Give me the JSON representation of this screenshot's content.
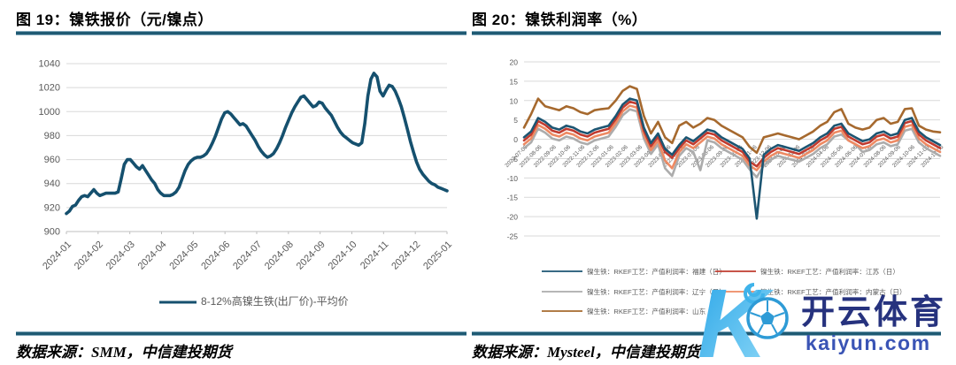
{
  "figures": [
    {
      "title": "图 19：镍铁报价（元/镍点）",
      "source": "数据来源：SMM，中信建投期货"
    },
    {
      "title": "图 20：镍铁利润率（%）",
      "source": "数据来源：Mysteel，中信建投期货"
    }
  ],
  "colors": {
    "rule": "#1F5A73",
    "grid": "#D9D9D9",
    "axis_text": "#595959"
  },
  "watermark": {
    "letter": "K",
    "brand": "开云体育",
    "domain": "kaiyun.com",
    "brand_color": "#26327E",
    "domain_color": "#3A54B5",
    "logo_blue": "#2E9BD6"
  },
  "chart_data": [
    {
      "type": "line",
      "title": "镍铁报价（元/镍点）",
      "ylabel": "",
      "xlabel": "",
      "ylim": [
        900,
        1040
      ],
      "y_ticks": [
        1040,
        1020,
        1000,
        980,
        960,
        940,
        920,
        900
      ],
      "grid": true,
      "legend_position": "bottom",
      "x_labels": [
        "2024-01",
        "2024-02",
        "2024-03",
        "2024-04",
        "2024-05",
        "2024-06",
        "2024-07",
        "2024-08",
        "2024-09",
        "2024-10",
        "2024-11",
        "2024-12",
        "2025-01"
      ],
      "series": [
        {
          "name": "8-12%高镍生铁(出厂价)-平均价",
          "color": "#15506E",
          "values": [
            915,
            917,
            921,
            922,
            926,
            929,
            930,
            929,
            932,
            935,
            932,
            930,
            931,
            932,
            932,
            932,
            932,
            933,
            944,
            956,
            960,
            960,
            957,
            954,
            952,
            955,
            951,
            947,
            943,
            940,
            935,
            932,
            930,
            930,
            930,
            931,
            933,
            937,
            944,
            951,
            956,
            959,
            961,
            962,
            962,
            963,
            965,
            969,
            974,
            980,
            987,
            994,
            999,
            1000,
            998,
            995,
            992,
            989,
            990,
            988,
            984,
            980,
            976,
            971,
            967,
            964,
            962,
            963,
            965,
            969,
            974,
            980,
            987,
            993,
            999,
            1004,
            1008,
            1012,
            1013,
            1010,
            1007,
            1004,
            1005,
            1008,
            1007,
            1003,
            1000,
            997,
            992,
            987,
            983,
            980,
            978,
            976,
            974,
            973,
            972,
            974,
            990,
            1013,
            1027,
            1032,
            1029,
            1017,
            1013,
            1018,
            1022,
            1021,
            1017,
            1011,
            1004,
            995,
            985,
            975,
            966,
            958,
            952,
            948,
            945,
            942,
            940,
            939,
            937,
            936,
            935,
            934
          ]
        }
      ]
    },
    {
      "type": "line",
      "title": "镍铁利润率（%）",
      "ylabel": "",
      "xlabel": "",
      "ylim": [
        -25,
        20
      ],
      "y_ticks": [
        20,
        15,
        10,
        5,
        0,
        -5,
        -10,
        -15,
        -20,
        -25
      ],
      "grid": true,
      "legend_position": "bottom",
      "x_labels": [
        "2022-07-06",
        "2022-08-06",
        "2022-09-06",
        "2022-10-06",
        "2022-11-06",
        "2022-12-06",
        "2023-01-06",
        "2023-02-06",
        "2023-03-06",
        "2023-04-06",
        "2023-05-06",
        "2023-06-06",
        "2023-07-06",
        "2023-08-06",
        "2023-09-06",
        "2023-10-06",
        "2023-11-06",
        "2023-12-06",
        "2024-01-06",
        "2024-02-06",
        "2024-03-06",
        "2024-04-06",
        "2024-05-06",
        "2024-06-06",
        "2024-07-06",
        "2024-08-06",
        "2024-09-06",
        "2024-10-06",
        "2024-11-06",
        "2024-12-06"
      ],
      "series": [
        {
          "name": "镍生铁：RKEF工艺：产值利润率：福建（日）",
          "color": "#1C5572",
          "values": [
            0.5,
            2.0,
            5.5,
            4.5,
            3.0,
            2.5,
            3.5,
            3.0,
            2.0,
            1.5,
            2.5,
            3.0,
            3.5,
            6.0,
            9.0,
            10.5,
            10.0,
            3.0,
            -1.0,
            1.5,
            -2.5,
            -4.0,
            -1.5,
            0.5,
            -0.5,
            1.0,
            2.5,
            2.0,
            0.5,
            -0.5,
            -1.5,
            -2.5,
            -5.0,
            -20.5,
            -4.0,
            -2.5,
            -1.5,
            -2.0,
            -2.5,
            -3.0,
            -2.0,
            -1.0,
            0.5,
            1.5,
            3.5,
            4.0,
            1.5,
            0.5,
            -0.5,
            0.0,
            1.5,
            2.0,
            1.0,
            1.5,
            5.0,
            5.5,
            2.0,
            0.5,
            -0.5,
            -1.5
          ]
        },
        {
          "name": "镍生铁：RKEF工艺：产值利润率：江苏（日）",
          "color": "#C13B2F",
          "values": [
            -0.3,
            1.2,
            4.7,
            3.7,
            2.2,
            1.7,
            2.7,
            2.2,
            1.2,
            0.7,
            1.7,
            2.2,
            2.7,
            5.2,
            8.2,
            9.7,
            9.2,
            2.2,
            -1.8,
            0.7,
            -3.3,
            -4.8,
            -2.3,
            -0.3,
            -1.3,
            0.2,
            1.7,
            1.2,
            -0.3,
            -1.3,
            -2.3,
            -3.3,
            -5.8,
            -7.0,
            -4.8,
            -3.3,
            -2.3,
            -2.8,
            -3.3,
            -3.8,
            -2.8,
            -1.8,
            -0.3,
            0.7,
            2.7,
            3.2,
            0.7,
            -0.3,
            -1.3,
            -0.8,
            0.7,
            1.2,
            0.2,
            0.7,
            4.2,
            4.7,
            1.2,
            -0.3,
            -1.3,
            -2.3
          ]
        },
        {
          "name": "镍生铁：RKEF工艺：产值利润率：辽宁（日）",
          "color": "#ACACAC",
          "values": [
            -2.3,
            -0.8,
            2.7,
            1.7,
            0.2,
            -0.3,
            0.7,
            0.2,
            -0.8,
            -1.3,
            -0.3,
            0.2,
            0.7,
            3.2,
            6.2,
            7.7,
            7.2,
            0.2,
            -3.8,
            -1.3,
            -7.5,
            -9.5,
            -4.3,
            -2.3,
            -3.3,
            -8.0,
            -0.3,
            -0.8,
            -2.3,
            -3.3,
            -4.3,
            -5.3,
            -7.8,
            -9.8,
            -6.8,
            -5.3,
            -4.3,
            -4.8,
            -5.3,
            -5.8,
            -4.8,
            -3.8,
            -2.3,
            -1.3,
            0.7,
            1.2,
            -0.3,
            -1.3,
            -3.3,
            -2.8,
            -1.3,
            -0.8,
            -1.8,
            -1.3,
            2.2,
            2.7,
            -0.8,
            -2.3,
            -3.3,
            -4.3
          ]
        },
        {
          "name": "镍生铁：RKEF工艺：产值利润率：内蒙古（日）",
          "color": "#EE8A63",
          "values": [
            -1.3,
            0.2,
            3.7,
            2.7,
            1.2,
            0.7,
            1.7,
            1.2,
            0.2,
            -0.3,
            0.7,
            1.2,
            1.7,
            4.2,
            7.2,
            8.7,
            8.2,
            1.2,
            -2.8,
            -0.3,
            -5.5,
            -7.5,
            -3.3,
            -1.3,
            -2.3,
            -0.8,
            0.7,
            0.2,
            -1.3,
            -2.3,
            -3.3,
            -4.3,
            -6.8,
            -8.0,
            -5.8,
            -4.3,
            -3.3,
            -3.8,
            -4.3,
            -4.8,
            -3.8,
            -2.8,
            -1.3,
            -0.3,
            1.7,
            2.2,
            -0.3,
            -1.3,
            -2.3,
            -1.8,
            -0.3,
            0.2,
            -0.8,
            -0.3,
            3.2,
            3.7,
            0.2,
            -1.3,
            -2.3,
            -3.3
          ]
        },
        {
          "name": "镍生铁：RKEF工艺：产值利润率：山东（日）",
          "color": "#A6692E",
          "values": [
            3.0,
            6.5,
            10.5,
            8.5,
            8.0,
            7.5,
            8.5,
            8.0,
            7.0,
            6.5,
            7.5,
            7.8,
            8.0,
            10.0,
            12.5,
            13.7,
            13.0,
            6.0,
            1.5,
            4.5,
            0.5,
            -1.0,
            3.5,
            4.5,
            3.0,
            4.0,
            5.5,
            5.0,
            3.5,
            2.5,
            1.5,
            0.5,
            -2.0,
            -3.5,
            0.5,
            1.0,
            1.5,
            1.0,
            0.5,
            0.0,
            1.0,
            2.0,
            3.5,
            4.5,
            7.0,
            7.8,
            4.0,
            3.0,
            2.5,
            3.0,
            5.0,
            5.5,
            4.0,
            4.5,
            7.8,
            8.0,
            3.5,
            2.5,
            2.0,
            1.8
          ]
        }
      ]
    }
  ]
}
